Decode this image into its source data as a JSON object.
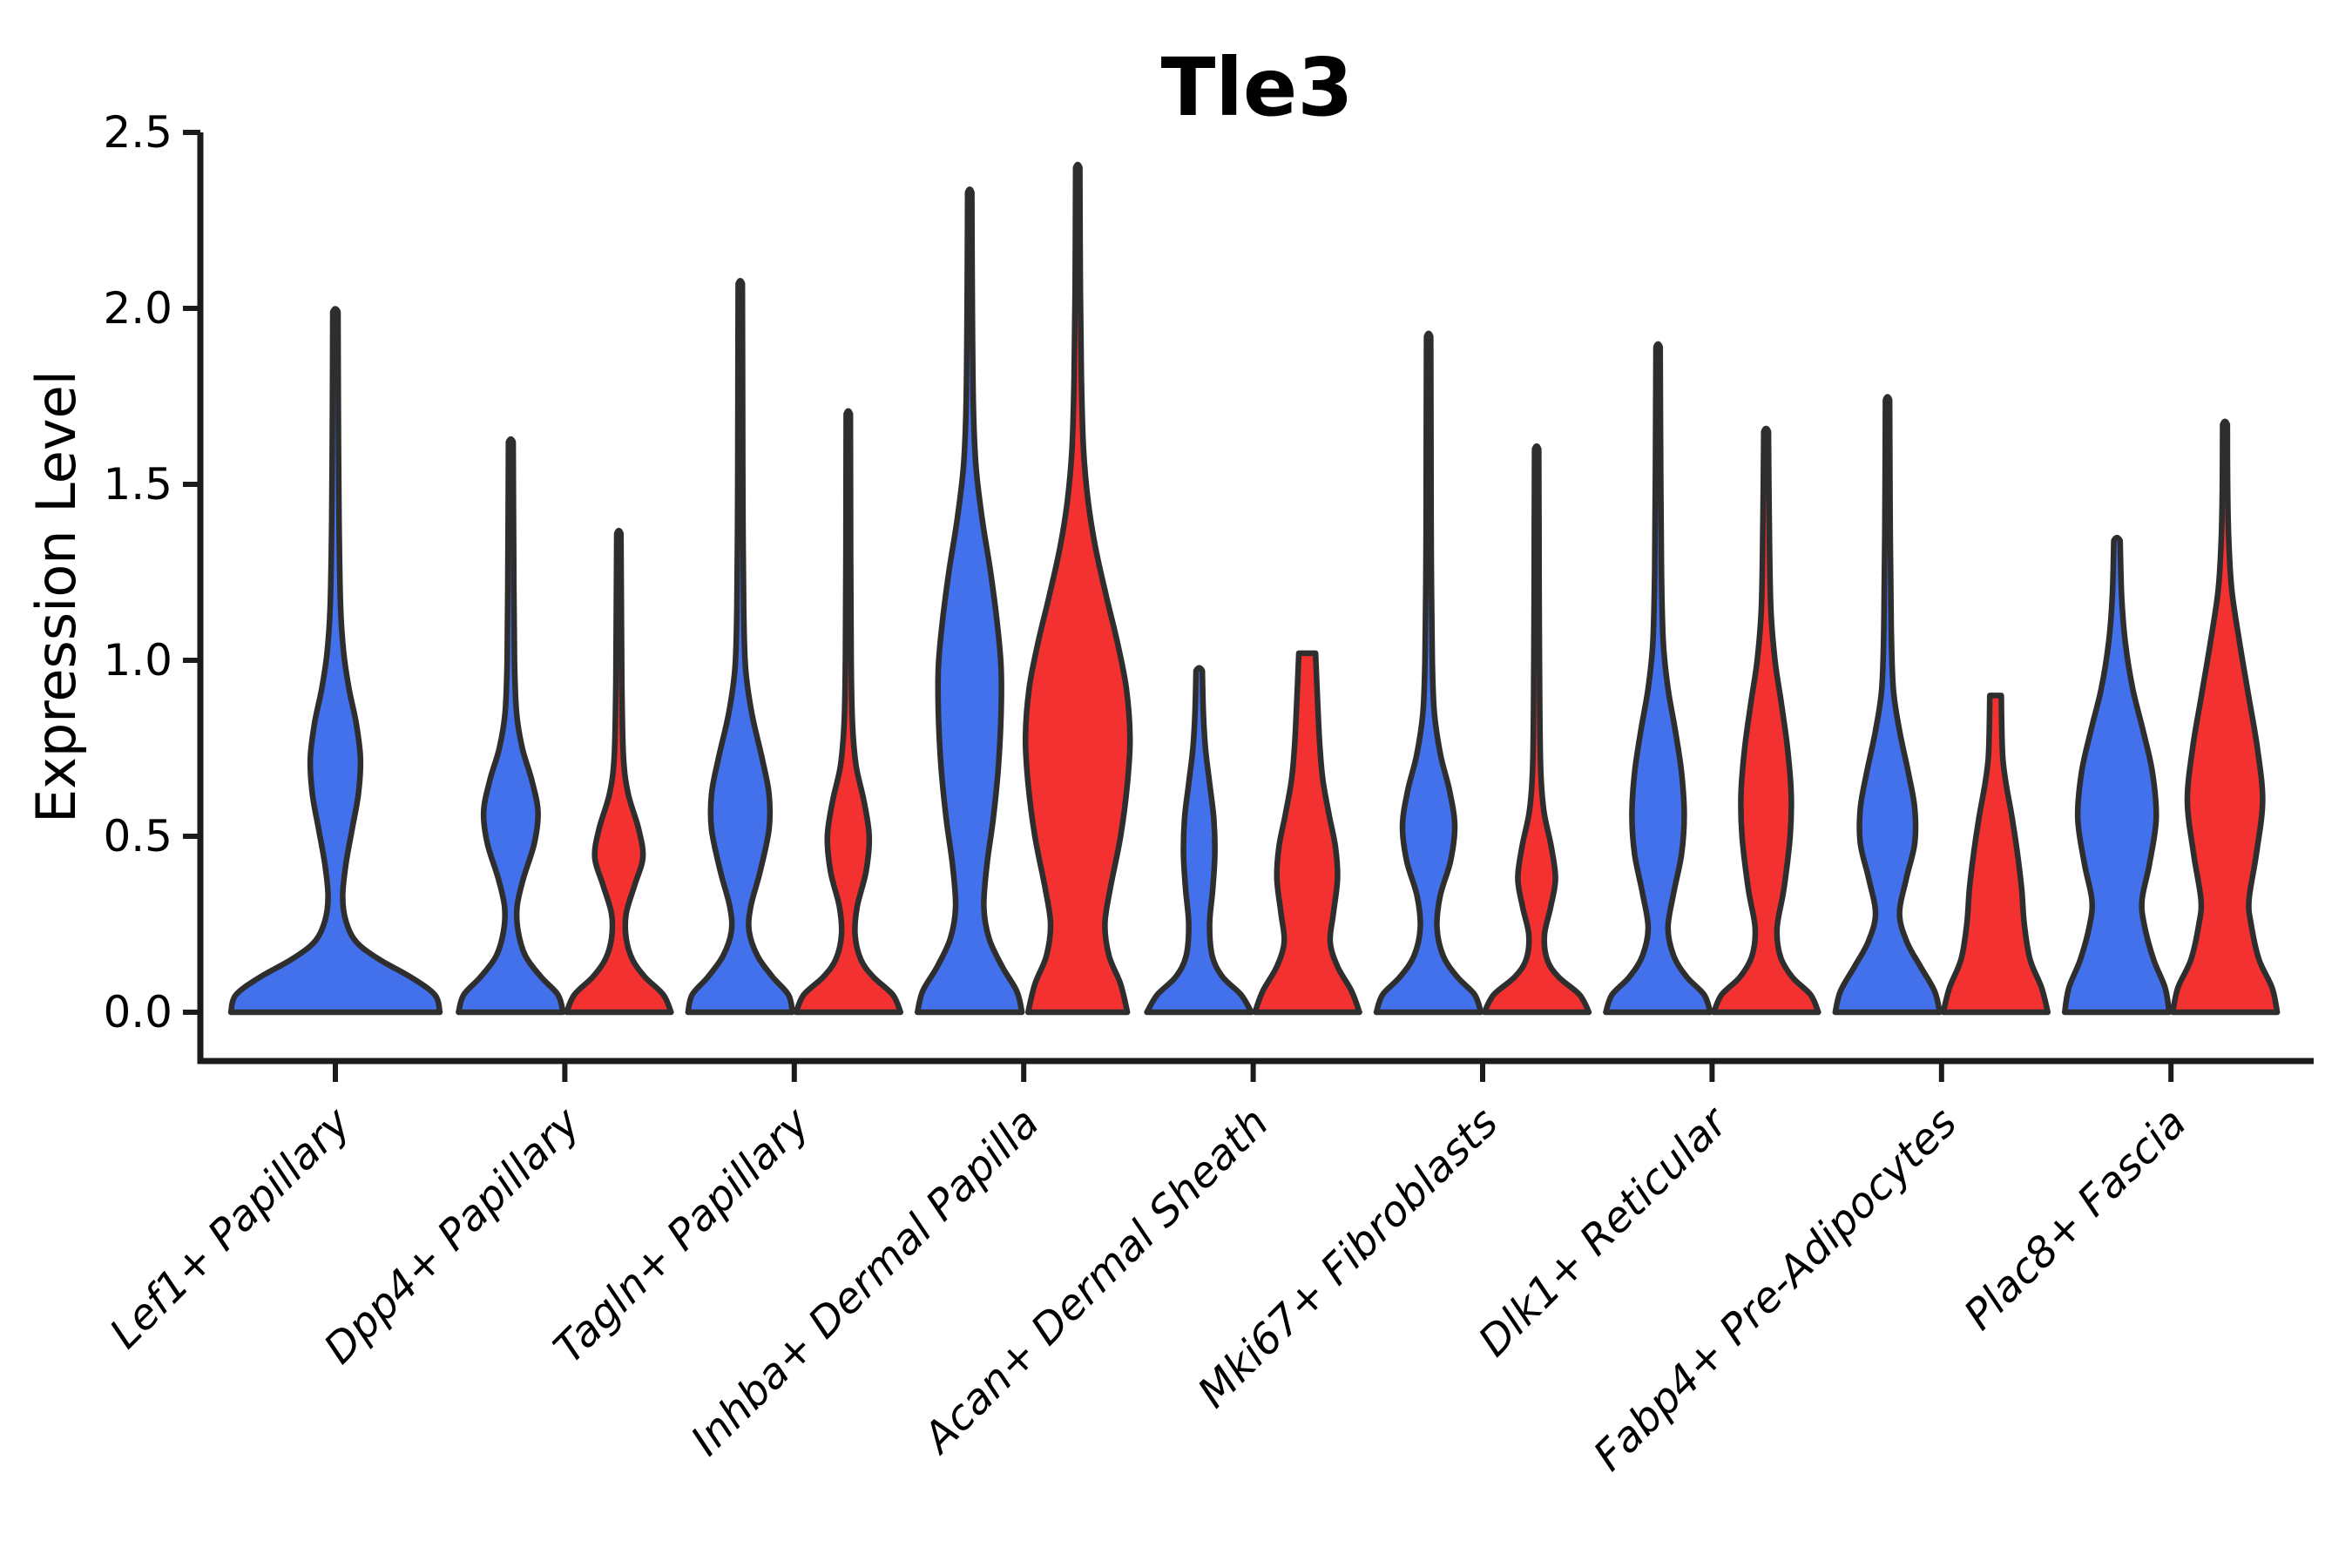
{
  "title": "Tle3",
  "ylabel": "Expression Level",
  "colors": {
    "blue": "#4370EB",
    "red": "#F43131",
    "outline": "#2E2E2E",
    "axis": "#1B1B1B",
    "text": "#000000",
    "background": "#FFFFFF"
  },
  "chart_data": {
    "type": "violin",
    "title": "Tle3",
    "xlabel": "",
    "ylabel": "Expression Level",
    "ylim": [
      -0.14,
      2.5
    ],
    "yticks": [
      0.0,
      0.5,
      1.0,
      1.5,
      2.0,
      2.5
    ],
    "ytick_labels": [
      "0.0",
      "0.5",
      "1.0",
      "1.5",
      "2.0",
      "2.5"
    ],
    "grid": false,
    "legend": "none",
    "categories": [
      "Lef1+ Papillary",
      "Dpp4+ Papillary",
      "Tagln+ Papillary",
      "Inhba+ Dermal Papilla",
      "Acan+ Dermal Sheath",
      "Mki67+ Fibroblasts",
      "Dlk1+ Reticular",
      "Fabp4+ Pre-Adipocytes",
      "Plac8+ Fascia"
    ],
    "series": [
      {
        "name": "blue",
        "color": "#4370EB"
      },
      {
        "name": "red",
        "color": "#F43131"
      }
    ],
    "violins": [
      {
        "category": "Lef1+ Papillary",
        "series": "blue",
        "placement": "center",
        "width_scale": 2,
        "max_expression": 1.99,
        "blunt_top": false,
        "profile": [
          [
            0,
            1.0
          ],
          [
            0.05,
            0.95
          ],
          [
            0.1,
            0.72
          ],
          [
            0.15,
            0.42
          ],
          [
            0.2,
            0.2
          ],
          [
            0.26,
            0.1
          ],
          [
            0.33,
            0.07
          ],
          [
            0.42,
            0.1
          ],
          [
            0.52,
            0.16
          ],
          [
            0.62,
            0.22
          ],
          [
            0.72,
            0.24
          ],
          [
            0.82,
            0.2
          ],
          [
            0.92,
            0.13
          ],
          [
            1.02,
            0.08
          ],
          [
            1.15,
            0.05
          ],
          [
            1.4,
            0.035
          ],
          [
            1.7,
            0.028
          ],
          [
            1.99,
            0.025
          ]
        ]
      },
      {
        "category": "Dpp4+ Papillary",
        "series": "blue",
        "placement": "left",
        "width_scale": 1,
        "max_expression": 1.62,
        "blunt_top": false,
        "profile": [
          [
            0,
            1.0
          ],
          [
            0.05,
            0.9
          ],
          [
            0.1,
            0.58
          ],
          [
            0.16,
            0.28
          ],
          [
            0.23,
            0.14
          ],
          [
            0.3,
            0.12
          ],
          [
            0.38,
            0.24
          ],
          [
            0.48,
            0.45
          ],
          [
            0.57,
            0.52
          ],
          [
            0.66,
            0.4
          ],
          [
            0.75,
            0.22
          ],
          [
            0.85,
            0.11
          ],
          [
            1.0,
            0.07
          ],
          [
            1.3,
            0.055
          ],
          [
            1.62,
            0.045
          ]
        ]
      },
      {
        "category": "Dpp4+ Papillary",
        "series": "red",
        "placement": "right",
        "width_scale": 1,
        "max_expression": 1.36,
        "blunt_top": false,
        "profile": [
          [
            0,
            1.0
          ],
          [
            0.05,
            0.85
          ],
          [
            0.1,
            0.5
          ],
          [
            0.15,
            0.26
          ],
          [
            0.21,
            0.14
          ],
          [
            0.28,
            0.14
          ],
          [
            0.36,
            0.3
          ],
          [
            0.44,
            0.46
          ],
          [
            0.52,
            0.38
          ],
          [
            0.62,
            0.18
          ],
          [
            0.72,
            0.09
          ],
          [
            0.9,
            0.06
          ],
          [
            1.1,
            0.05
          ],
          [
            1.36,
            0.04
          ]
        ]
      },
      {
        "category": "Tagln+ Papillary",
        "series": "blue",
        "placement": "left",
        "width_scale": 1,
        "max_expression": 2.07,
        "blunt_top": false,
        "profile": [
          [
            0,
            1.0
          ],
          [
            0.05,
            0.92
          ],
          [
            0.1,
            0.62
          ],
          [
            0.16,
            0.33
          ],
          [
            0.23,
            0.17
          ],
          [
            0.3,
            0.2
          ],
          [
            0.4,
            0.38
          ],
          [
            0.52,
            0.55
          ],
          [
            0.62,
            0.55
          ],
          [
            0.72,
            0.42
          ],
          [
            0.85,
            0.22
          ],
          [
            0.98,
            0.1
          ],
          [
            1.15,
            0.065
          ],
          [
            1.45,
            0.05
          ],
          [
            1.75,
            0.045
          ],
          [
            2.07,
            0.04
          ]
        ]
      },
      {
        "category": "Tagln+ Papillary",
        "series": "red",
        "placement": "right",
        "width_scale": 1,
        "max_expression": 1.7,
        "blunt_top": false,
        "profile": [
          [
            0,
            1.0
          ],
          [
            0.05,
            0.85
          ],
          [
            0.1,
            0.48
          ],
          [
            0.15,
            0.24
          ],
          [
            0.22,
            0.13
          ],
          [
            0.3,
            0.17
          ],
          [
            0.4,
            0.34
          ],
          [
            0.5,
            0.4
          ],
          [
            0.6,
            0.3
          ],
          [
            0.7,
            0.15
          ],
          [
            0.82,
            0.08
          ],
          [
            1.0,
            0.055
          ],
          [
            1.3,
            0.045
          ],
          [
            1.7,
            0.04
          ]
        ]
      },
      {
        "category": "Inhba+ Dermal Papilla",
        "series": "blue",
        "placement": "left",
        "width_scale": 1,
        "max_expression": 2.33,
        "blunt_top": false,
        "profile": [
          [
            0,
            1.0
          ],
          [
            0.06,
            0.9
          ],
          [
            0.13,
            0.62
          ],
          [
            0.21,
            0.37
          ],
          [
            0.3,
            0.27
          ],
          [
            0.42,
            0.33
          ],
          [
            0.55,
            0.45
          ],
          [
            0.7,
            0.55
          ],
          [
            0.85,
            0.6
          ],
          [
            0.98,
            0.6
          ],
          [
            1.1,
            0.53
          ],
          [
            1.25,
            0.4
          ],
          [
            1.4,
            0.24
          ],
          [
            1.55,
            0.12
          ],
          [
            1.72,
            0.07
          ],
          [
            2.0,
            0.05
          ],
          [
            2.33,
            0.04
          ]
        ]
      },
      {
        "category": "Inhba+ Dermal Papilla",
        "series": "red",
        "placement": "right",
        "width_scale": 1,
        "max_expression": 2.4,
        "blunt_top": false,
        "profile": [
          [
            0,
            0.95
          ],
          [
            0.08,
            0.82
          ],
          [
            0.16,
            0.6
          ],
          [
            0.25,
            0.52
          ],
          [
            0.35,
            0.62
          ],
          [
            0.5,
            0.82
          ],
          [
            0.65,
            0.95
          ],
          [
            0.78,
            1.0
          ],
          [
            0.92,
            0.93
          ],
          [
            1.05,
            0.76
          ],
          [
            1.18,
            0.55
          ],
          [
            1.32,
            0.34
          ],
          [
            1.45,
            0.2
          ],
          [
            1.6,
            0.11
          ],
          [
            1.8,
            0.07
          ],
          [
            2.05,
            0.05
          ],
          [
            2.4,
            0.04
          ]
        ]
      },
      {
        "category": "Acan+ Dermal Sheath",
        "series": "blue",
        "placement": "left",
        "width_scale": 1,
        "max_expression": 0.97,
        "blunt_top": false,
        "profile": [
          [
            0,
            1.0
          ],
          [
            0.05,
            0.8
          ],
          [
            0.1,
            0.45
          ],
          [
            0.16,
            0.25
          ],
          [
            0.25,
            0.2
          ],
          [
            0.35,
            0.26
          ],
          [
            0.45,
            0.3
          ],
          [
            0.55,
            0.28
          ],
          [
            0.65,
            0.2
          ],
          [
            0.75,
            0.12
          ],
          [
            0.85,
            0.08
          ],
          [
            0.97,
            0.06
          ]
        ]
      },
      {
        "category": "Acan+ Dermal Sheath",
        "series": "red",
        "placement": "right",
        "width_scale": 1,
        "max_expression": 1.02,
        "blunt_top": true,
        "profile": [
          [
            0,
            1.0
          ],
          [
            0.06,
            0.85
          ],
          [
            0.13,
            0.58
          ],
          [
            0.2,
            0.44
          ],
          [
            0.28,
            0.5
          ],
          [
            0.38,
            0.58
          ],
          [
            0.47,
            0.54
          ],
          [
            0.56,
            0.42
          ],
          [
            0.66,
            0.3
          ],
          [
            0.76,
            0.24
          ],
          [
            0.88,
            0.2
          ],
          [
            1.02,
            0.16
          ]
        ]
      },
      {
        "category": "Mki67+ Fibroblasts",
        "series": "blue",
        "placement": "left",
        "width_scale": 1,
        "max_expression": 1.92,
        "blunt_top": false,
        "profile": [
          [
            0,
            1.0
          ],
          [
            0.05,
            0.88
          ],
          [
            0.1,
            0.55
          ],
          [
            0.16,
            0.28
          ],
          [
            0.24,
            0.16
          ],
          [
            0.33,
            0.22
          ],
          [
            0.43,
            0.42
          ],
          [
            0.53,
            0.5
          ],
          [
            0.63,
            0.4
          ],
          [
            0.73,
            0.23
          ],
          [
            0.85,
            0.11
          ],
          [
            1.0,
            0.07
          ],
          [
            1.3,
            0.05
          ],
          [
            1.6,
            0.045
          ],
          [
            1.92,
            0.04
          ]
        ]
      },
      {
        "category": "Mki67+ Fibroblasts",
        "series": "red",
        "placement": "right",
        "width_scale": 1,
        "max_expression": 1.6,
        "blunt_top": false,
        "profile": [
          [
            0,
            1.0
          ],
          [
            0.05,
            0.82
          ],
          [
            0.1,
            0.42
          ],
          [
            0.15,
            0.2
          ],
          [
            0.22,
            0.15
          ],
          [
            0.3,
            0.27
          ],
          [
            0.38,
            0.36
          ],
          [
            0.47,
            0.28
          ],
          [
            0.57,
            0.14
          ],
          [
            0.68,
            0.08
          ],
          [
            0.85,
            0.06
          ],
          [
            1.1,
            0.05
          ],
          [
            1.35,
            0.045
          ],
          [
            1.6,
            0.04
          ]
        ]
      },
      {
        "category": "Dlk1+ Reticular",
        "series": "blue",
        "placement": "left",
        "width_scale": 1,
        "max_expression": 1.89,
        "blunt_top": false,
        "profile": [
          [
            0,
            1.0
          ],
          [
            0.05,
            0.88
          ],
          [
            0.1,
            0.55
          ],
          [
            0.16,
            0.3
          ],
          [
            0.24,
            0.19
          ],
          [
            0.34,
            0.3
          ],
          [
            0.45,
            0.45
          ],
          [
            0.56,
            0.5
          ],
          [
            0.68,
            0.45
          ],
          [
            0.8,
            0.33
          ],
          [
            0.92,
            0.19
          ],
          [
            1.05,
            0.1
          ],
          [
            1.25,
            0.065
          ],
          [
            1.55,
            0.05
          ],
          [
            1.89,
            0.04
          ]
        ]
      },
      {
        "category": "Dlk1+ Reticular",
        "series": "red",
        "placement": "right",
        "width_scale": 1,
        "max_expression": 1.65,
        "blunt_top": false,
        "profile": [
          [
            0,
            1.0
          ],
          [
            0.05,
            0.85
          ],
          [
            0.1,
            0.5
          ],
          [
            0.16,
            0.27
          ],
          [
            0.24,
            0.21
          ],
          [
            0.35,
            0.34
          ],
          [
            0.5,
            0.46
          ],
          [
            0.62,
            0.48
          ],
          [
            0.75,
            0.41
          ],
          [
            0.88,
            0.29
          ],
          [
            1.0,
            0.17
          ],
          [
            1.15,
            0.09
          ],
          [
            1.4,
            0.06
          ],
          [
            1.65,
            0.045
          ]
        ]
      },
      {
        "category": "Fabp4+ Pre-Adipocytes",
        "series": "blue",
        "placement": "left",
        "width_scale": 1,
        "max_expression": 1.74,
        "blunt_top": false,
        "profile": [
          [
            0,
            1.0
          ],
          [
            0.06,
            0.9
          ],
          [
            0.13,
            0.63
          ],
          [
            0.2,
            0.37
          ],
          [
            0.28,
            0.23
          ],
          [
            0.38,
            0.36
          ],
          [
            0.48,
            0.52
          ],
          [
            0.58,
            0.52
          ],
          [
            0.68,
            0.4
          ],
          [
            0.8,
            0.23
          ],
          [
            0.92,
            0.11
          ],
          [
            1.1,
            0.07
          ],
          [
            1.4,
            0.05
          ],
          [
            1.74,
            0.04
          ]
        ]
      },
      {
        "category": "Fabp4+ Pre-Adipocytes",
        "series": "red",
        "placement": "right",
        "width_scale": 1,
        "max_expression": 0.9,
        "blunt_top": true,
        "profile": [
          [
            0,
            1.0
          ],
          [
            0.07,
            0.88
          ],
          [
            0.15,
            0.66
          ],
          [
            0.25,
            0.55
          ],
          [
            0.35,
            0.5
          ],
          [
            0.45,
            0.42
          ],
          [
            0.55,
            0.32
          ],
          [
            0.65,
            0.2
          ],
          [
            0.72,
            0.14
          ],
          [
            0.8,
            0.12
          ],
          [
            0.9,
            0.11
          ]
        ]
      },
      {
        "category": "Plac8+ Fascia",
        "series": "blue",
        "placement": "left",
        "width_scale": 1,
        "max_expression": 1.34,
        "blunt_top": false,
        "profile": [
          [
            0,
            1.0
          ],
          [
            0.07,
            0.92
          ],
          [
            0.15,
            0.7
          ],
          [
            0.25,
            0.52
          ],
          [
            0.32,
            0.48
          ],
          [
            0.42,
            0.62
          ],
          [
            0.55,
            0.75
          ],
          [
            0.68,
            0.68
          ],
          [
            0.8,
            0.5
          ],
          [
            0.92,
            0.3
          ],
          [
            1.05,
            0.16
          ],
          [
            1.18,
            0.09
          ],
          [
            1.34,
            0.06
          ]
        ]
      },
      {
        "category": "Plac8+ Fascia",
        "series": "red",
        "placement": "right",
        "width_scale": 1,
        "max_expression": 1.67,
        "blunt_top": false,
        "profile": [
          [
            0,
            1.0
          ],
          [
            0.07,
            0.9
          ],
          [
            0.15,
            0.65
          ],
          [
            0.25,
            0.5
          ],
          [
            0.32,
            0.46
          ],
          [
            0.45,
            0.6
          ],
          [
            0.6,
            0.72
          ],
          [
            0.75,
            0.62
          ],
          [
            0.9,
            0.45
          ],
          [
            1.05,
            0.28
          ],
          [
            1.2,
            0.13
          ],
          [
            1.35,
            0.07
          ],
          [
            1.5,
            0.05
          ],
          [
            1.67,
            0.045
          ]
        ]
      }
    ]
  }
}
